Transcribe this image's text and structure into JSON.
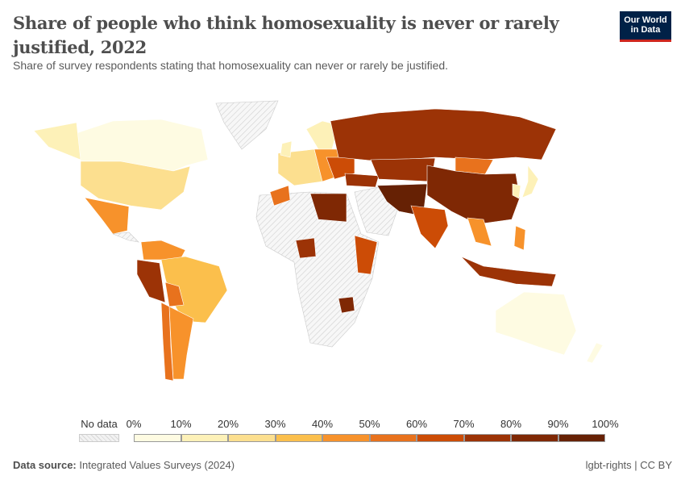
{
  "header": {
    "title": "Share of people who think homosexuality is never or rarely justified, 2022",
    "subtitle": "Share of survey respondents stating that homosexuality can never or rarely be justified.",
    "logo_text": "Our World in Data"
  },
  "legend": {
    "no_data_label": "No data",
    "ticks": [
      "0%",
      "10%",
      "20%",
      "30%",
      "40%",
      "50%",
      "60%",
      "70%",
      "80%",
      "90%",
      "100%"
    ],
    "colors": [
      "#fefbe2",
      "#fdf1b8",
      "#fcdf8f",
      "#fbbf4c",
      "#f7922b",
      "#e8721d",
      "#cc4c06",
      "#9c3306",
      "#7f2804",
      "#662104"
    ],
    "no_data_color": "#e6e6e6"
  },
  "footer": {
    "source_label": "Data source:",
    "source": "Integrated Values Surveys (2024)",
    "license": "lgbt-rights | CC BY"
  }
}
